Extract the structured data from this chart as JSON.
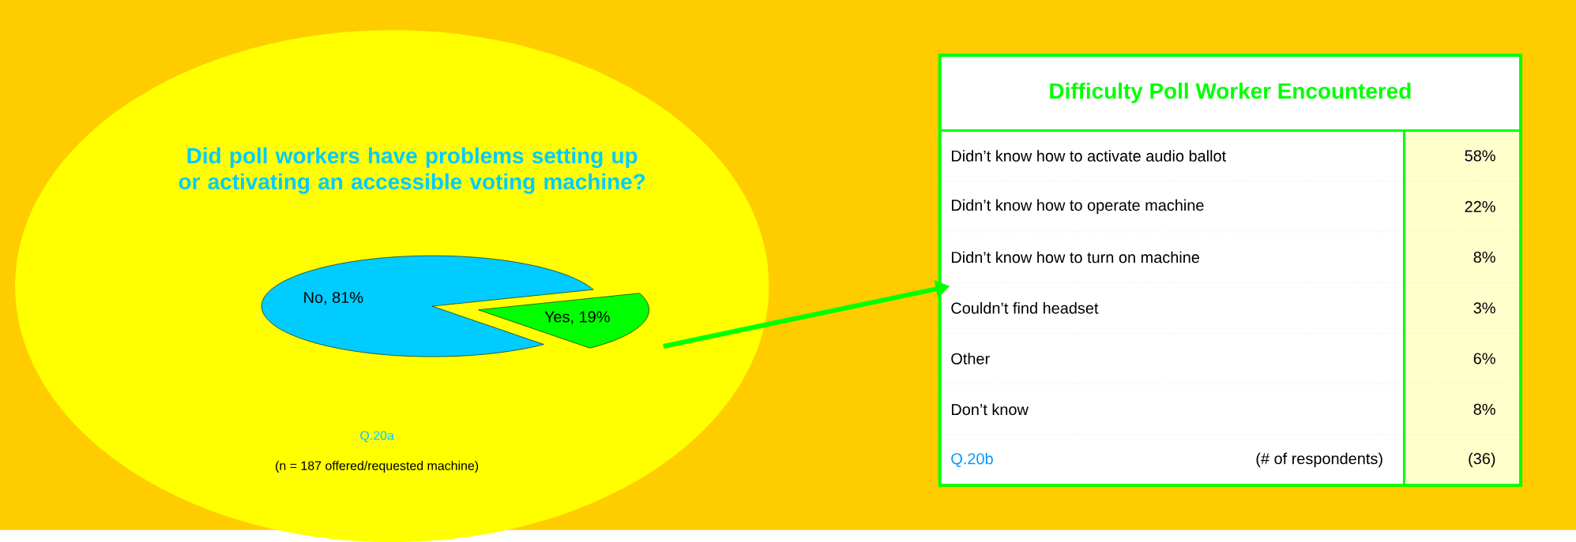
{
  "chart_data": [
    {
      "type": "pie",
      "title": "Did poll workers have problems setting up or activating an accessible voting machine?",
      "categories": [
        "No, 81%",
        "Yes, 19%"
      ],
      "values": [
        81,
        19
      ],
      "colors": [
        "#00ccff",
        "#00ff00"
      ],
      "annotations": [
        "Q.20a",
        "(n = 187 offered/requested machine)"
      ]
    },
    {
      "type": "other",
      "title": "Difficulty Poll Worker Encountered",
      "categories": [
        "Didn’t know how to activate audio ballot",
        "Didn’t know how to operate machine",
        "Didn’t know how to turn on machine",
        "Couldn’t find headset",
        "Other",
        "Don’t know"
      ],
      "value_labels": [
        "58%",
        "22%",
        "8%",
        "3%",
        "6%",
        "8%"
      ],
      "annotations": [
        "Q.20b",
        "(# of respondents)",
        "(36)"
      ]
    }
  ]
}
